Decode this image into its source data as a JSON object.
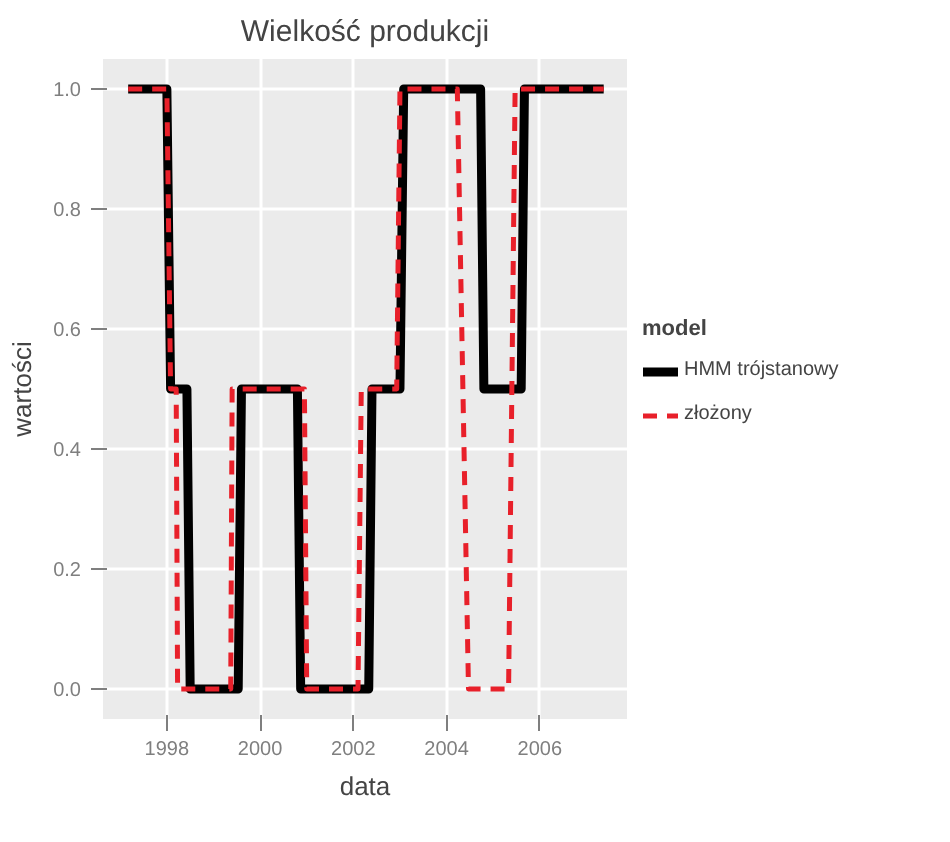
{
  "chart_data": {
    "type": "line",
    "title": "Wielkość produkcji",
    "xlabel": "data",
    "ylabel": "wartości",
    "legend_title": "model",
    "xlim": [
      1996.63,
      2007.87
    ],
    "ylim": [
      -0.05,
      1.05
    ],
    "xticks": [
      1998,
      2000,
      2002,
      2004,
      2006
    ],
    "yticks": [
      {
        "value": 0,
        "label": "0.0"
      },
      {
        "value": 0.2,
        "label": "0.2"
      },
      {
        "value": 0.4,
        "label": "0.4"
      },
      {
        "value": 0.6,
        "label": "0.6"
      },
      {
        "value": 0.8,
        "label": "0.8"
      },
      {
        "value": 1,
        "label": "1.0"
      }
    ],
    "grid": true,
    "legend": "right",
    "marker": "none",
    "series": [
      {
        "name": "HMM trójstanowy",
        "color": "#000000",
        "line_style": "solid",
        "x": [
          1997.17,
          1998.0,
          1998.08,
          1998.43,
          1998.5,
          1999.53,
          1999.6,
          2000.8,
          2000.87,
          2002.33,
          2002.4,
          2003.0,
          2003.08,
          2004.73,
          2004.8,
          2005.6,
          2005.67,
          2007.37
        ],
        "values": [
          1,
          1,
          0.5,
          0.5,
          0,
          0,
          0.5,
          0.5,
          0,
          0,
          0.5,
          0.5,
          1,
          1,
          0.5,
          0.5,
          1,
          1
        ]
      },
      {
        "name": "złożony",
        "color": "#e8202a",
        "line_style": "dashed",
        "x": [
          1997.17,
          1998.0,
          1998.08,
          1998.2,
          1998.23,
          1999.37,
          1999.4,
          2000.95,
          2001.0,
          2002.1,
          2002.17,
          2002.93,
          2003.0,
          2004.23,
          2004.47,
          2005.33,
          2005.47,
          2007.37
        ],
        "values": [
          1,
          1,
          0.5,
          0.5,
          0,
          0,
          0.5,
          0.5,
          0,
          0,
          0.5,
          0.5,
          1,
          1,
          0,
          0,
          1,
          1
        ]
      }
    ]
  }
}
